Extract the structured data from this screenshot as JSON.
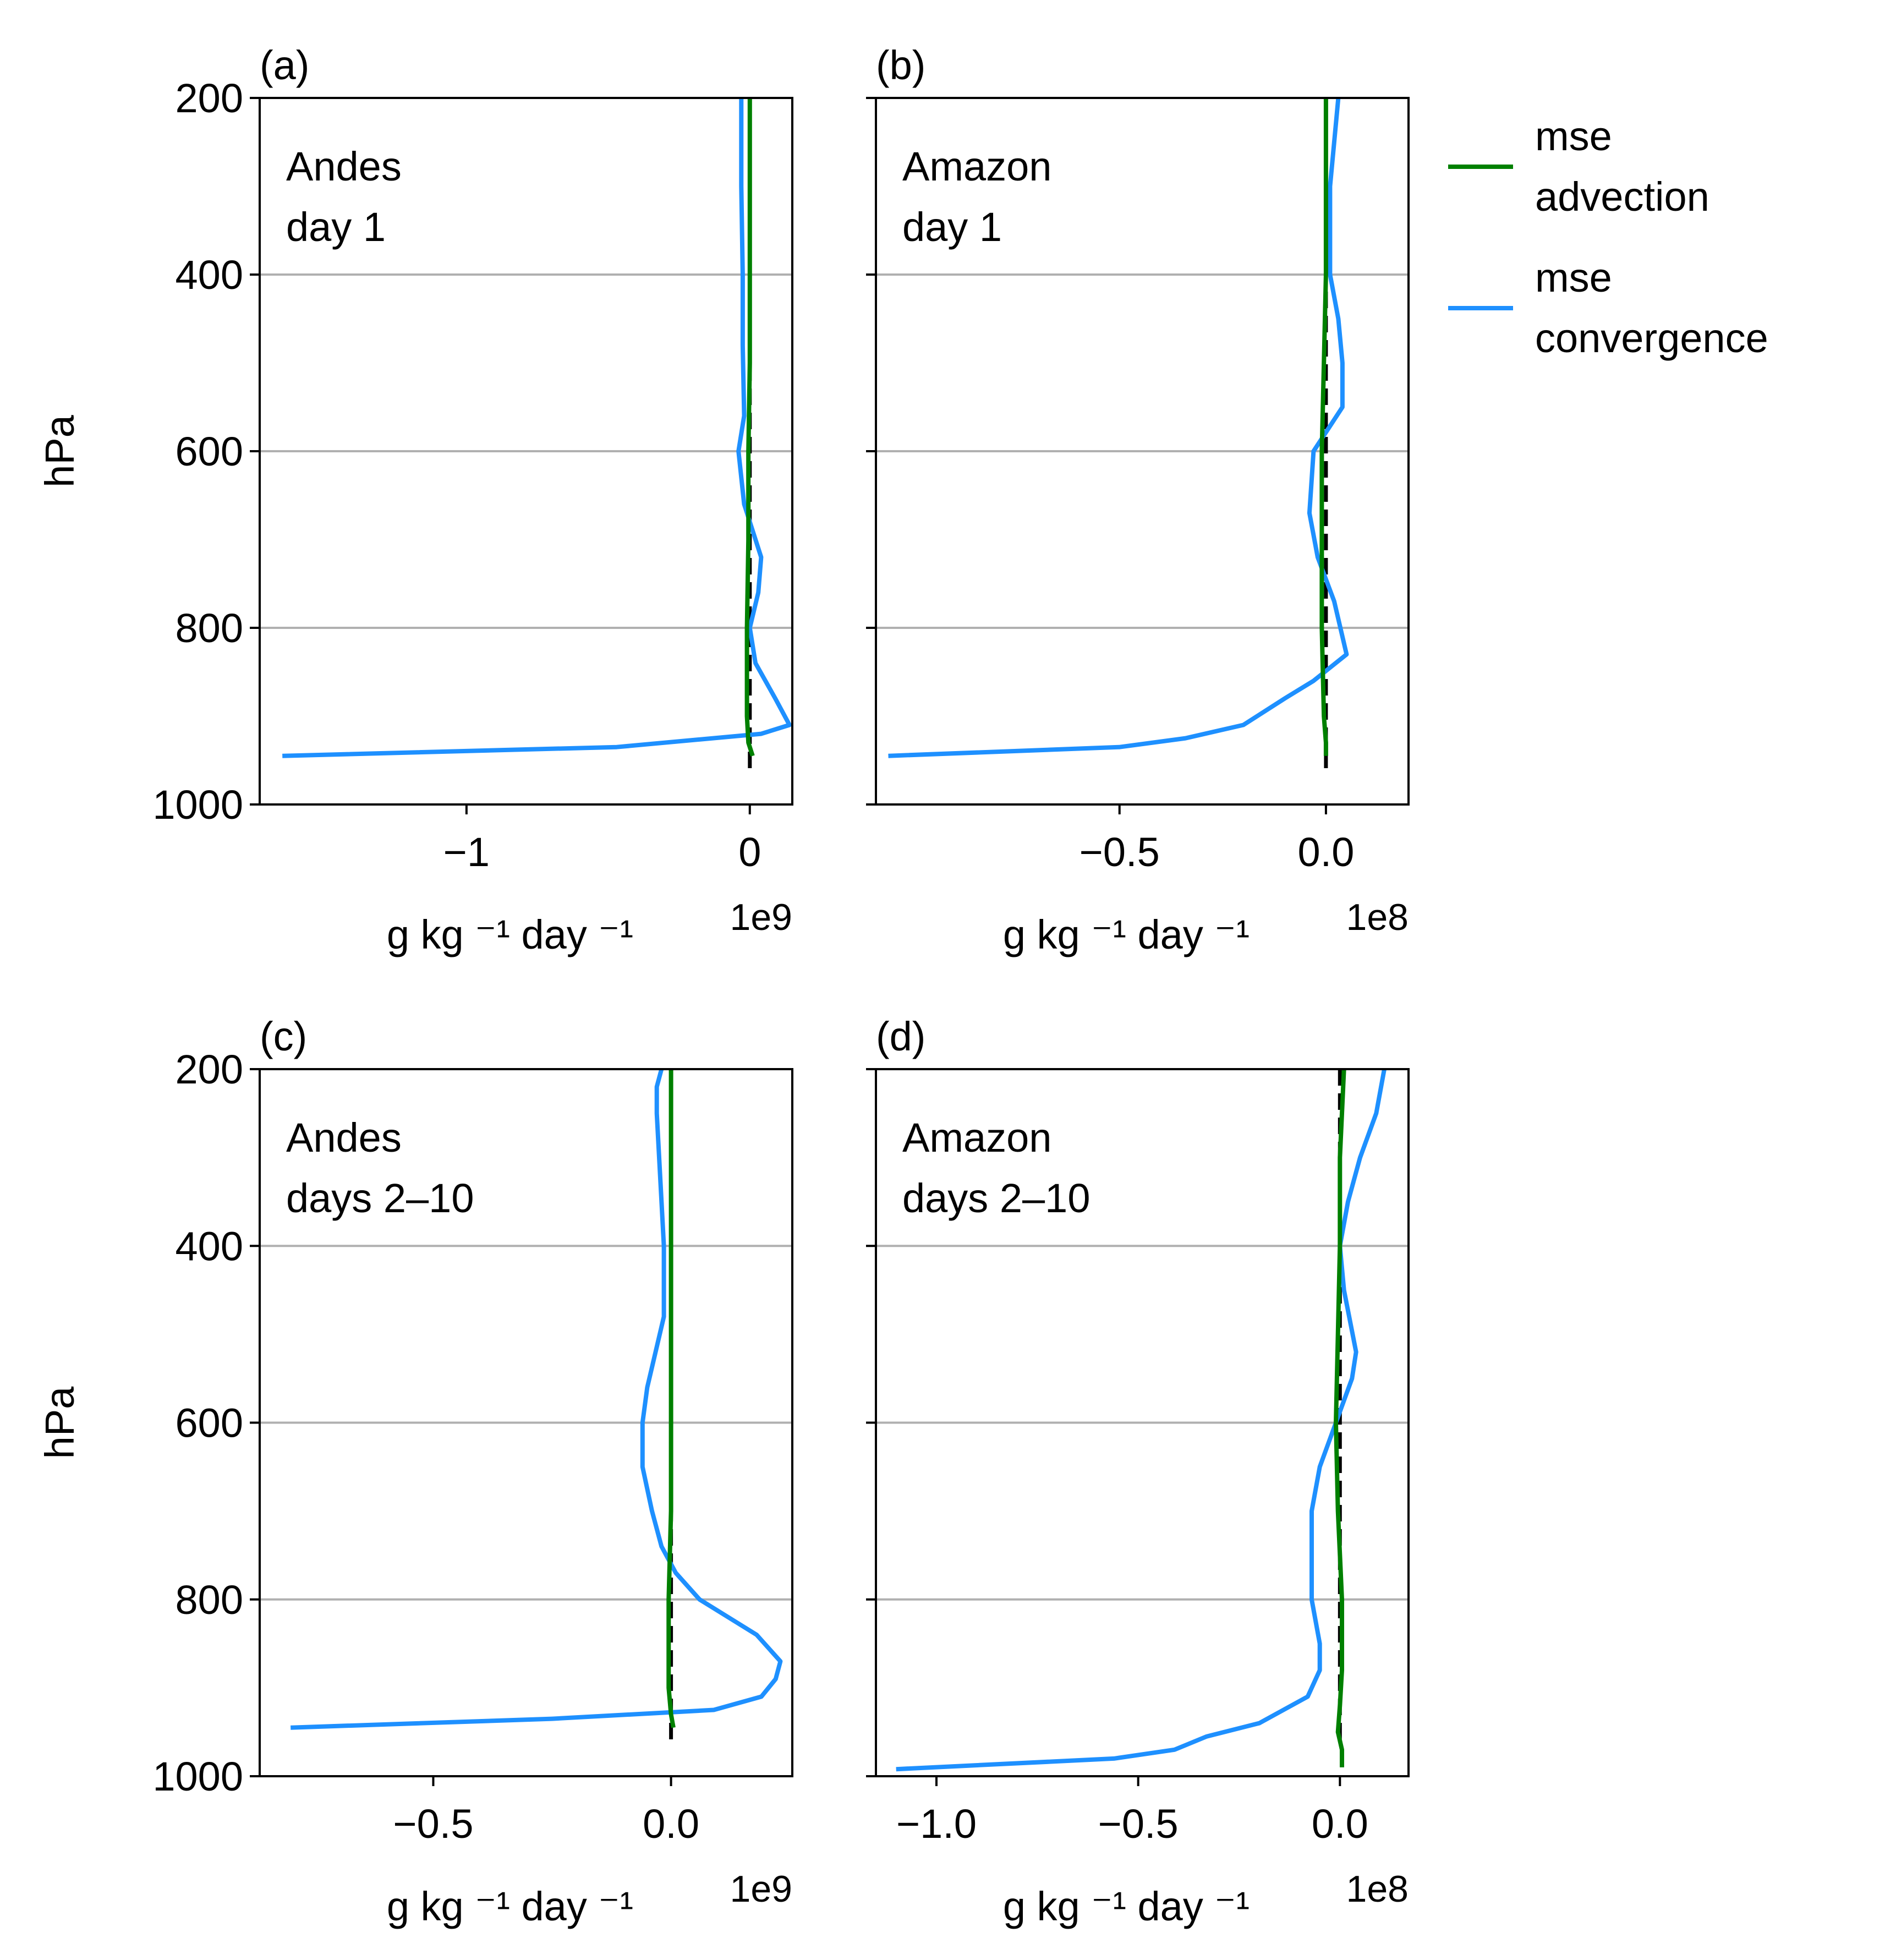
{
  "legend": {
    "placement": "outside-right",
    "entries": [
      {
        "series_key": "advection",
        "lines": [
          "mse",
          "advection"
        ],
        "color": "#008000"
      },
      {
        "series_key": "convergence",
        "lines": [
          "mse",
          "convergence"
        ],
        "color": "#1e90ff"
      }
    ]
  },
  "colors": {
    "advection": "#008000",
    "convergence": "#1e90ff",
    "zero_line": "#000000",
    "grid": "#b0b0b0"
  },
  "chart_data": [
    {
      "type": "line",
      "panel_label": "(a)",
      "annotation": [
        "Andes",
        "day 1"
      ],
      "xlabel": "g kg ⁻¹ day ⁻¹",
      "x_offset_label": "1e9",
      "ylabel": "hPa",
      "ylim": [
        1000,
        200
      ],
      "xlim": [
        -1.73,
        0.15
      ],
      "xticks": [
        {
          "value": -1,
          "label": "−1"
        },
        {
          "value": 0,
          "label": "0"
        }
      ],
      "yticks": [
        200,
        400,
        600,
        800,
        1000
      ],
      "grid": "horizontal",
      "series": [
        {
          "key": "advection",
          "name": "mse advection",
          "x": [
            0.0,
            0.0,
            0.0,
            0.0,
            -0.005,
            -0.005,
            -0.01,
            -0.01,
            -0.005,
            0.01
          ],
          "y": [
            200,
            300,
            400,
            500,
            600,
            700,
            800,
            900,
            930,
            945
          ]
        },
        {
          "key": "convergence",
          "name": "mse convergence",
          "x": [
            -0.03,
            -0.03,
            -0.025,
            -0.025,
            -0.02,
            -0.04,
            -0.02,
            0.04,
            0.03,
            0.0,
            0.02,
            0.09,
            0.14,
            0.04,
            -0.47,
            -1.65
          ],
          "y": [
            200,
            300,
            400,
            480,
            560,
            600,
            660,
            720,
            760,
            800,
            840,
            880,
            910,
            920,
            935,
            945
          ]
        },
        {
          "key": "zero",
          "x": [
            0,
            0
          ],
          "y": [
            200,
            960
          ]
        }
      ]
    },
    {
      "type": "line",
      "panel_label": "(b)",
      "annotation": [
        "Amazon",
        "day 1"
      ],
      "xlabel": "g kg ⁻¹ day ⁻¹",
      "x_offset_label": "1e8",
      "ylabel": "",
      "ylim": [
        1000,
        200
      ],
      "xlim": [
        -1.09,
        0.2
      ],
      "xticks": [
        {
          "value": -0.5,
          "label": "−0.5"
        },
        {
          "value": 0,
          "label": "0.0"
        }
      ],
      "yticks": [
        200,
        400,
        600,
        800,
        1000
      ],
      "grid": "horizontal",
      "series": [
        {
          "key": "advection",
          "name": "mse advection",
          "x": [
            0.0,
            0.0,
            0.0,
            -0.005,
            -0.01,
            -0.01,
            -0.01,
            -0.005,
            0.0,
            0.0
          ],
          "y": [
            200,
            300,
            400,
            500,
            600,
            700,
            800,
            900,
            930,
            945
          ]
        },
        {
          "key": "convergence",
          "name": "mse convergence",
          "x": [
            0.03,
            0.02,
            0.01,
            0.01,
            0.03,
            0.04,
            0.04,
            -0.03,
            -0.04,
            -0.02,
            0.02,
            0.05,
            -0.03,
            -0.1,
            -0.2,
            -0.34,
            -0.5,
            -1.06
          ],
          "y": [
            200,
            250,
            300,
            400,
            450,
            500,
            550,
            600,
            670,
            720,
            770,
            830,
            860,
            880,
            910,
            925,
            935,
            945
          ]
        },
        {
          "key": "zero",
          "x": [
            0,
            0
          ],
          "y": [
            200,
            960
          ]
        }
      ]
    },
    {
      "type": "line",
      "panel_label": "(c)",
      "annotation": [
        "Andes",
        "days 2–10"
      ],
      "xlabel": "g kg ⁻¹ day ⁻¹",
      "x_offset_label": "1e9",
      "ylabel": "hPa",
      "ylim": [
        1000,
        200
      ],
      "xlim": [
        -0.865,
        0.255
      ],
      "xticks": [
        {
          "value": -0.5,
          "label": "−0.5"
        },
        {
          "value": 0,
          "label": "0.0"
        }
      ],
      "yticks": [
        200,
        400,
        600,
        800,
        1000
      ],
      "grid": "horizontal",
      "series": [
        {
          "key": "advection",
          "name": "mse advection",
          "x": [
            0.0,
            0.0,
            0.0,
            0.0,
            0.0,
            0.0,
            -0.005,
            -0.005,
            0.0,
            0.005
          ],
          "y": [
            200,
            300,
            400,
            500,
            600,
            700,
            800,
            900,
            930,
            945
          ]
        },
        {
          "key": "convergence",
          "name": "mse convergence",
          "x": [
            -0.02,
            -0.03,
            -0.03,
            -0.02,
            -0.015,
            -0.015,
            -0.05,
            -0.06,
            -0.06,
            -0.04,
            -0.02,
            0.01,
            0.06,
            0.18,
            0.23,
            0.22,
            0.19,
            0.09,
            -0.25,
            -0.8
          ],
          "y": [
            200,
            220,
            250,
            350,
            400,
            480,
            560,
            600,
            650,
            700,
            740,
            770,
            800,
            840,
            870,
            890,
            910,
            925,
            935,
            945
          ]
        },
        {
          "key": "zero",
          "x": [
            0,
            0
          ],
          "y": [
            200,
            960
          ]
        }
      ]
    },
    {
      "type": "line",
      "panel_label": "(d)",
      "annotation": [
        "Amazon",
        "days 2–10"
      ],
      "xlabel": "g kg ⁻¹ day ⁻¹",
      "x_offset_label": "1e8",
      "ylabel": "",
      "ylim": [
        1000,
        200
      ],
      "xlim": [
        -1.15,
        0.17
      ],
      "xticks": [
        {
          "value": -1.0,
          "label": "−1.0"
        },
        {
          "value": -0.5,
          "label": "−0.5"
        },
        {
          "value": 0,
          "label": "0.0"
        }
      ],
      "yticks": [
        200,
        400,
        600,
        800,
        1000
      ],
      "grid": "horizontal",
      "series": [
        {
          "key": "advection",
          "name": "mse advection",
          "x": [
            0.01,
            0.0,
            0.0,
            -0.005,
            -0.01,
            -0.005,
            0.005,
            0.005,
            0.0,
            -0.005,
            0.005,
            0.005
          ],
          "y": [
            200,
            300,
            400,
            500,
            600,
            700,
            800,
            880,
            920,
            950,
            970,
            990
          ]
        },
        {
          "key": "convergence",
          "name": "mse convergence",
          "x": [
            0.11,
            0.09,
            0.05,
            0.02,
            0.0,
            0.01,
            0.04,
            0.03,
            -0.01,
            -0.05,
            -0.07,
            -0.07,
            -0.05,
            -0.05,
            -0.08,
            -0.2,
            -0.33,
            -0.41,
            -0.56,
            -1.1
          ],
          "y": [
            200,
            250,
            300,
            350,
            400,
            450,
            520,
            550,
            600,
            650,
            700,
            800,
            850,
            880,
            910,
            940,
            955,
            970,
            980,
            992
          ]
        },
        {
          "key": "zero",
          "x": [
            0,
            0
          ],
          "y": [
            200,
            960
          ]
        }
      ]
    }
  ]
}
